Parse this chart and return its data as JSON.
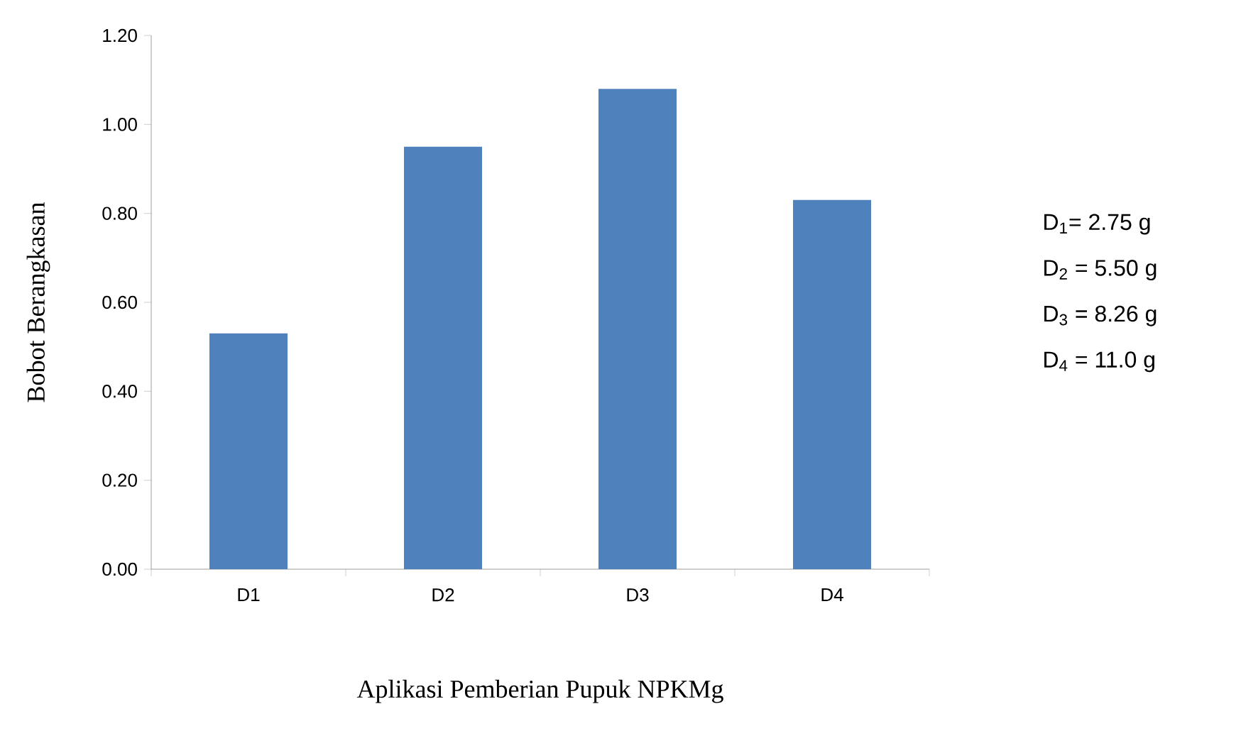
{
  "chart_data": {
    "type": "bar",
    "xlabel": "Aplikasi Pemberian Pupuk NPKMg",
    "ylabel": "Bobot Berangkasan",
    "categories": [
      "D1",
      "D2",
      "D3",
      "D4"
    ],
    "values": [
      0.53,
      0.95,
      1.08,
      0.83
    ],
    "color": "#4f81bd",
    "ylim": [
      0,
      1.2
    ],
    "yticks": [
      {
        "value": 0,
        "label": "0.00"
      },
      {
        "value": 0.2,
        "label": "0.20"
      },
      {
        "value": 0.4,
        "label": "0.40"
      },
      {
        "value": 0.6,
        "label": "0.60"
      },
      {
        "value": 0.8,
        "label": "0.80"
      },
      {
        "value": 1.0,
        "label": "1.00"
      },
      {
        "value": 1.2,
        "label": "1.20"
      }
    ],
    "annotations": [
      "D$_{1}$= 2.75 g",
      "D$_{2}$ = 5.50 g",
      "D$_{3}$ = 8.26 g",
      "D$_{4}$ = 11.0 g"
    ]
  }
}
